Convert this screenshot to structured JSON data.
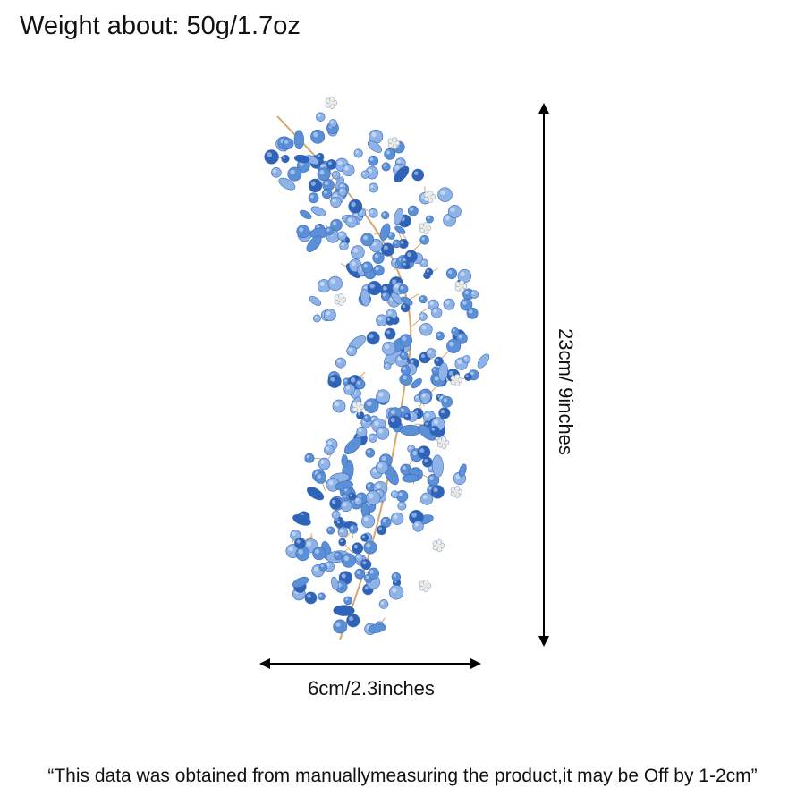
{
  "weight_text": "Weight about: 50g/1.7oz",
  "width_label": "6cm/2.3inches",
  "height_label": "23cm/ 9inches",
  "disclaimer": "“This data was obtained from manuallymeasuring the product,it may be Off by 1-2cm”",
  "colors": {
    "crystal_light": "#8fb3e6",
    "crystal_mid": "#5b8fd6",
    "crystal_dark": "#2f63b8",
    "wire": "#d4a86a",
    "rhinestone": "#e8eef6",
    "arrow": "#000000"
  }
}
